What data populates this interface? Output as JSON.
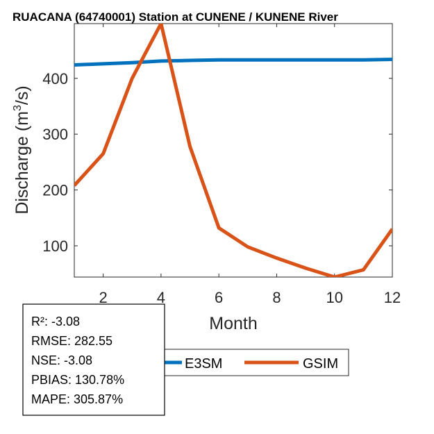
{
  "chart_data": {
    "type": "line",
    "title": "RUACANA (64740001)  Station at  CUNENE / KUNENE  River",
    "xlabel": "Month",
    "ylabel_main": "Discharge (m",
    "ylabel_sup": "3",
    "ylabel_tail": "/s)",
    "xlim": [
      1,
      12
    ],
    "ylim": [
      44,
      498
    ],
    "xticks": [
      2,
      4,
      6,
      8,
      10,
      12
    ],
    "yticks": [
      100,
      200,
      300,
      400
    ],
    "x": [
      1,
      2,
      3,
      4,
      5,
      6,
      7,
      8,
      9,
      10,
      11,
      12
    ],
    "series": [
      {
        "name": "E3SM",
        "color": "#0072BD",
        "values": [
          424,
          426,
          428,
          431,
          432,
          433,
          433,
          433,
          433,
          433,
          433,
          434
        ]
      },
      {
        "name": "GSIM",
        "color": "#D95319",
        "values": [
          208,
          265,
          400,
          498,
          278,
          132,
          98,
          78,
          60,
          44,
          57,
          130
        ]
      }
    ],
    "legend_position": "bottom"
  },
  "stats": {
    "r2": "R²: -3.08",
    "rmse": "RMSE: 282.55",
    "nse": "NSE: -3.08",
    "pbias": "PBIAS: 130.78%",
    "mape": "MAPE: 305.87%"
  }
}
